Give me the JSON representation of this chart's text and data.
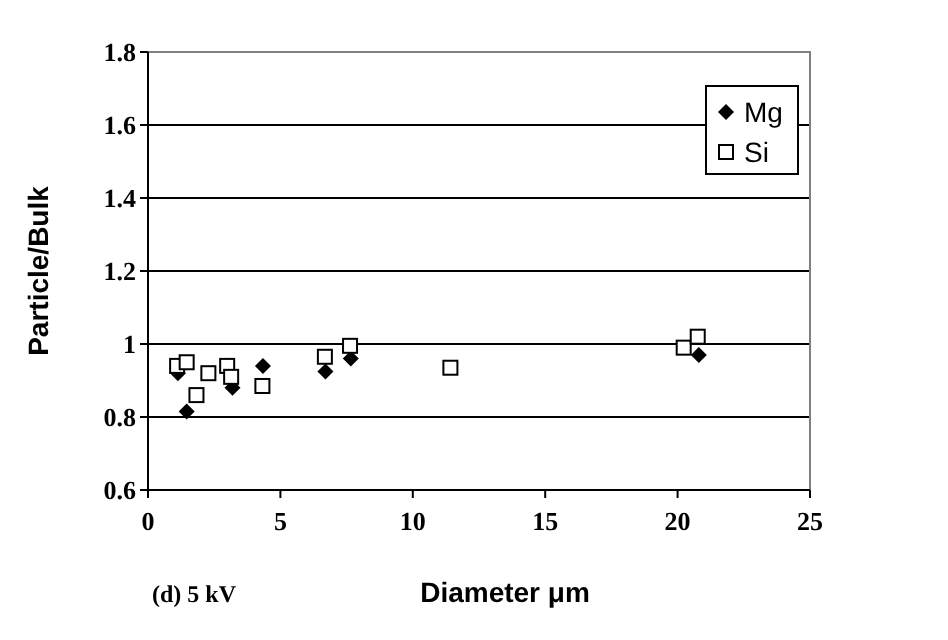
{
  "chart_data": {
    "type": "scatter",
    "xlabel": "Diameter μm",
    "ylabel": "Particle/Bulk",
    "annotations": [
      "(d) 5 kV"
    ],
    "xlim": [
      0,
      25
    ],
    "xticks": [
      0,
      5,
      10,
      15,
      20,
      25
    ],
    "ylim": [
      0.6,
      1.8
    ],
    "yticks": [
      0.6,
      0.8,
      1,
      1.2,
      1.4,
      1.6,
      1.8
    ],
    "grid": "y",
    "legend": "top right",
    "series": [
      {
        "name": "Mg",
        "color": "#000000",
        "marker": "diamond",
        "x": [
          1.13,
          1.46,
          3.19,
          4.34,
          6.7,
          7.66,
          20.8
        ],
        "values": [
          0.92,
          0.815,
          0.88,
          0.94,
          0.925,
          0.96,
          0.97
        ]
      },
      {
        "name": "Si",
        "color": "#000000",
        "marker": "square",
        "x": [
          1.1,
          1.46,
          1.83,
          2.28,
          2.99,
          3.14,
          4.32,
          6.68,
          7.63,
          11.42,
          20.23,
          20.76
        ],
        "values": [
          0.94,
          0.95,
          0.86,
          0.92,
          0.94,
          0.91,
          0.885,
          0.965,
          0.995,
          0.935,
          0.99,
          1.02
        ]
      }
    ]
  }
}
